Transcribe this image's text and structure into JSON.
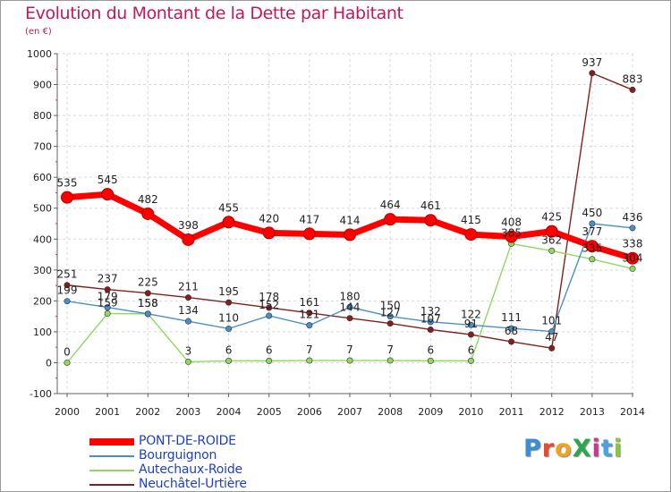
{
  "title": "Evolution du Montant de la Dette par Habitant",
  "subtitle": "(en €)",
  "brand": {
    "text": "ProXiti",
    "letters": [
      "P",
      "r",
      "o",
      "X",
      "i",
      "t",
      "i"
    ],
    "colors": [
      "#3b8ed6",
      "#e84a2c",
      "#f3a31c",
      "#2aa84a",
      "#c8398d",
      "#4aa3df",
      "#8cc63e"
    ]
  },
  "chart_data": {
    "type": "line",
    "x": [
      "2000",
      "2001",
      "2002",
      "2003",
      "2004",
      "2005",
      "2006",
      "2007",
      "2008",
      "2009",
      "2010",
      "2011",
      "2012",
      "2013",
      "2014"
    ],
    "ylim": [
      -100,
      1000
    ],
    "yticks": [
      -100,
      0,
      100,
      200,
      300,
      400,
      500,
      600,
      700,
      800,
      900,
      1000
    ],
    "grid": true,
    "legend_position": "bottom-left",
    "series": [
      {
        "name": "PONT-DE-ROIDE",
        "color": "#ff0000",
        "width": 7,
        "values": [
          535,
          545,
          482,
          398,
          455,
          420,
          417,
          414,
          464,
          461,
          415,
          408,
          425,
          377,
          338
        ]
      },
      {
        "name": "Bourguignon",
        "color": "#4a90c8",
        "width": 1,
        "values": [
          199,
          179,
          158,
          134,
          110,
          152,
          121,
          180,
          150,
          132,
          122,
          111,
          101,
          450,
          436
        ]
      },
      {
        "name": "Autechaux-Roide",
        "color": "#90d860",
        "width": 1,
        "values": [
          0,
          159,
          158,
          3,
          6,
          6,
          7,
          7,
          7,
          6,
          6,
          385,
          362,
          335,
          304
        ]
      },
      {
        "name": "Neuchâtel-Urtière",
        "color": "#802020",
        "width": 1,
        "values": [
          251,
          237,
          225,
          211,
          195,
          178,
          161,
          144,
          127,
          107,
          91,
          68,
          47,
          937,
          883
        ]
      }
    ]
  }
}
